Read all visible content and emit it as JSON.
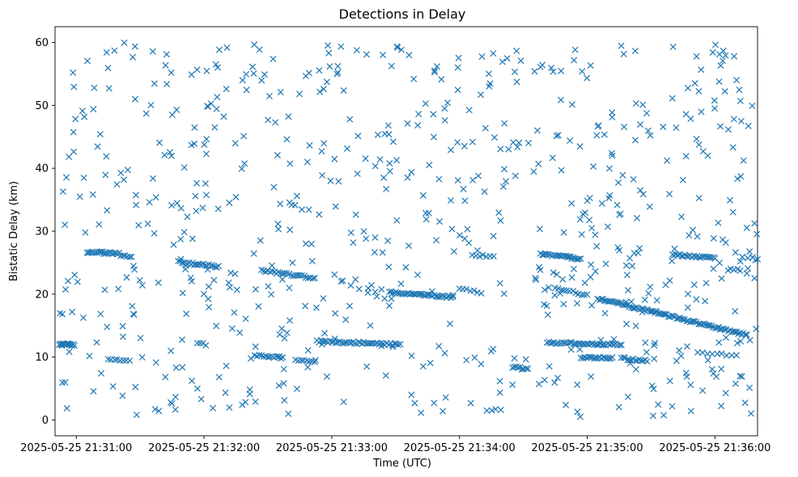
{
  "chart_data": {
    "type": "scatter",
    "title": "Detections in Delay",
    "xlabel": "Time (UTC)",
    "ylabel": "Bistatic Delay (km)",
    "marker": "x",
    "color": "#1f77b4",
    "x_unit": "seconds since 2025-05-25 21:31:00",
    "xlim": [
      -10,
      320
    ],
    "ylim": [
      -2.5,
      62.5
    ],
    "x_ticks": [
      {
        "value": 0,
        "label": "2025-05-25 21:31:00"
      },
      {
        "value": 60,
        "label": "2025-05-25 21:32:00"
      },
      {
        "value": 120,
        "label": "2025-05-25 21:33:00"
      },
      {
        "value": 180,
        "label": "2025-05-25 21:34:00"
      },
      {
        "value": 240,
        "label": "2025-05-25 21:35:00"
      },
      {
        "value": 300,
        "label": "2025-05-25 21:36:00"
      }
    ],
    "y_ticks": [
      {
        "value": 0,
        "label": "0"
      },
      {
        "value": 10,
        "label": "10"
      },
      {
        "value": 20,
        "label": "20"
      },
      {
        "value": 30,
        "label": "30"
      },
      {
        "value": 40,
        "label": "40"
      },
      {
        "value": 50,
        "label": "50"
      },
      {
        "value": 60,
        "label": "60"
      }
    ],
    "tracks": [
      {
        "name": "track-12km",
        "t_start": -8,
        "t_end": -1,
        "y_start": 12.1,
        "y_end": 11.9,
        "count": 18
      },
      {
        "name": "track-26.5km",
        "t_start": 5,
        "t_end": 20,
        "y_start": 26.7,
        "y_end": 26.5,
        "count": 22
      },
      {
        "name": "track-26km-b",
        "t_start": 21,
        "t_end": 26,
        "y_start": 26.1,
        "y_end": 25.9,
        "count": 6
      },
      {
        "name": "track-9.5km",
        "t_start": 15,
        "t_end": 25,
        "y_start": 9.5,
        "y_end": 9.4,
        "count": 8
      },
      {
        "name": "track-25km",
        "t_start": 48,
        "t_end": 67,
        "y_start": 25.1,
        "y_end": 24.4,
        "count": 24
      },
      {
        "name": "track-12km-b",
        "t_start": 57,
        "t_end": 61,
        "y_start": 12.2,
        "y_end": 12.0,
        "count": 4
      },
      {
        "name": "track-24km",
        "t_start": 87,
        "t_end": 112,
        "y_start": 23.8,
        "y_end": 22.5,
        "count": 26
      },
      {
        "name": "track-10km",
        "t_start": 84,
        "t_end": 97,
        "y_start": 10.2,
        "y_end": 9.9,
        "count": 14
      },
      {
        "name": "track-9.4km",
        "t_start": 103,
        "t_end": 112,
        "y_start": 9.6,
        "y_end": 9.2,
        "count": 8
      },
      {
        "name": "track-12km-c",
        "t_start": 113,
        "t_end": 152,
        "y_start": 12.5,
        "y_end": 12.0,
        "count": 45
      },
      {
        "name": "track-22km",
        "t_start": 125,
        "t_end": 145,
        "y_start": 22.0,
        "y_end": 19.2,
        "count": 6
      },
      {
        "name": "track-20km",
        "t_start": 147,
        "t_end": 177,
        "y_start": 20.3,
        "y_end": 19.5,
        "count": 38
      },
      {
        "name": "track-26km-c",
        "t_start": 186,
        "t_end": 196,
        "y_start": 26.2,
        "y_end": 26.0,
        "count": 7
      },
      {
        "name": "track-20.5km",
        "t_start": 180,
        "t_end": 190,
        "y_start": 20.8,
        "y_end": 20.3,
        "count": 7
      },
      {
        "name": "track-8km",
        "t_start": 205,
        "t_end": 212,
        "y_start": 8.4,
        "y_end": 8.1,
        "count": 9
      },
      {
        "name": "track-26km-d",
        "t_start": 218,
        "t_end": 237,
        "y_start": 26.4,
        "y_end": 25.6,
        "count": 26
      },
      {
        "name": "track-20.8km",
        "t_start": 225,
        "t_end": 240,
        "y_start": 21.0,
        "y_end": 19.8,
        "count": 12
      },
      {
        "name": "track-12km-d",
        "t_start": 221,
        "t_end": 256,
        "y_start": 12.3,
        "y_end": 12.0,
        "count": 40
      },
      {
        "name": "track-10km-b",
        "t_start": 237,
        "t_end": 252,
        "y_start": 10.0,
        "y_end": 9.8,
        "count": 18
      },
      {
        "name": "track-19.3km-slope",
        "t_start": 245,
        "t_end": 315,
        "y_start": 19.3,
        "y_end": 13.5,
        "count": 90
      },
      {
        "name": "track-9.5km-c",
        "t_start": 256,
        "t_end": 268,
        "y_start": 9.8,
        "y_end": 9.4,
        "count": 14
      },
      {
        "name": "track-26km-e",
        "t_start": 280,
        "t_end": 300,
        "y_start": 26.3,
        "y_end": 25.7,
        "count": 25
      },
      {
        "name": "track-23.8km",
        "t_start": 306,
        "t_end": 312,
        "y_start": 23.9,
        "y_end": 23.8,
        "count": 5
      },
      {
        "name": "track-25.7km",
        "t_start": 313,
        "t_end": 320,
        "y_start": 25.8,
        "y_end": 25.7,
        "count": 4
      },
      {
        "name": "track-10.5km",
        "t_start": 292,
        "t_end": 310,
        "y_start": 10.6,
        "y_end": 10.3,
        "count": 9
      }
    ],
    "clutter": {
      "count": 700,
      "t_range": [
        -8,
        320
      ],
      "y_range": [
        0.5,
        60
      ]
    }
  }
}
